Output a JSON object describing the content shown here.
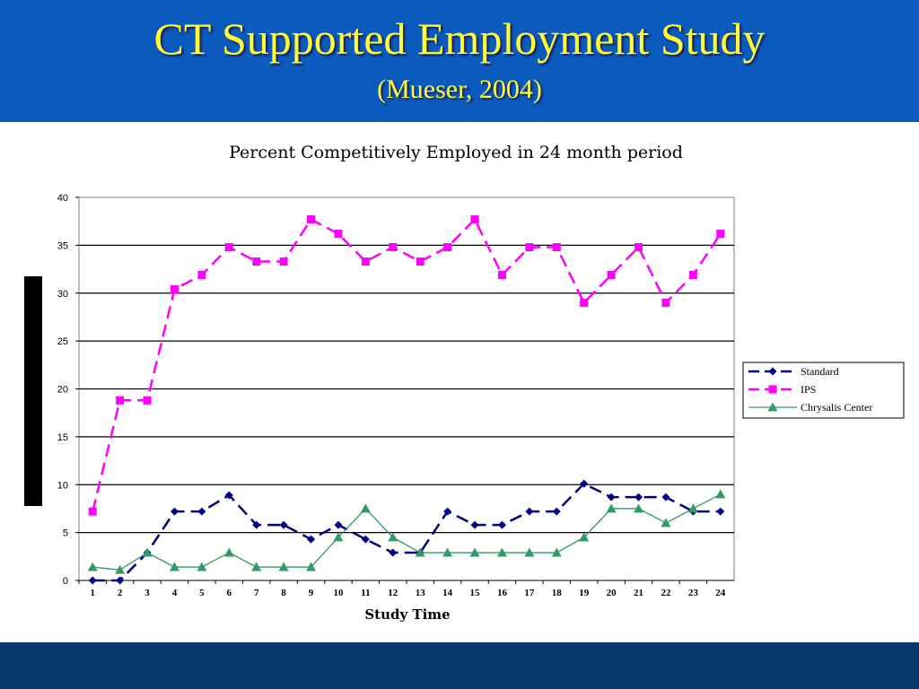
{
  "slide": {
    "title": "CT Supported Employment Study",
    "subtitle": "(Mueser, 2004)",
    "colors": {
      "header_bg": "#0b5bbf",
      "title_text": "#ffff33",
      "footer_bg": "#063a6e"
    }
  },
  "chart_data": {
    "type": "line",
    "title": "Percent Competitively Employed in 24 month period",
    "xlabel": "Study Time",
    "ylabel": "",
    "ylim": [
      0,
      40
    ],
    "yticks": [
      0,
      5,
      10,
      15,
      20,
      25,
      30,
      35,
      40
    ],
    "grid": true,
    "legend_position": "right",
    "categories": [
      "1",
      "2",
      "3",
      "4",
      "5",
      "6",
      "7",
      "8",
      "9",
      "10",
      "11",
      "12",
      "13",
      "14",
      "15",
      "16",
      "17",
      "18",
      "19",
      "20",
      "21",
      "22",
      "23",
      "24"
    ],
    "series": [
      {
        "name": "Standard",
        "color": "#000080",
        "marker": "diamond",
        "dashed": true,
        "values": [
          0,
          0,
          2.9,
          7.2,
          7.2,
          8.9,
          5.8,
          5.8,
          4.3,
          5.8,
          4.3,
          2.9,
          2.9,
          7.2,
          5.8,
          5.8,
          7.2,
          7.2,
          10.1,
          8.7,
          8.7,
          8.7,
          7.2,
          7.2
        ]
      },
      {
        "name": "IPS",
        "color": "#ff00ff",
        "marker": "square",
        "dashed": true,
        "values": [
          7.2,
          18.8,
          18.8,
          30.4,
          31.9,
          34.8,
          33.3,
          33.3,
          37.7,
          36.2,
          33.3,
          34.8,
          33.3,
          34.8,
          37.7,
          31.9,
          34.8,
          34.8,
          29.0,
          31.9,
          34.8,
          29.0,
          31.9,
          36.2
        ]
      },
      {
        "name": "Chrysalis Center",
        "color": "#339966",
        "marker": "triangle",
        "dashed": false,
        "values": [
          1.4,
          1.1,
          2.9,
          1.4,
          1.4,
          2.9,
          1.4,
          1.4,
          1.4,
          4.5,
          7.5,
          4.5,
          2.9,
          2.9,
          2.9,
          2.9,
          2.9,
          2.9,
          4.5,
          7.5,
          7.5,
          6.0,
          7.5,
          9.0
        ]
      }
    ]
  }
}
